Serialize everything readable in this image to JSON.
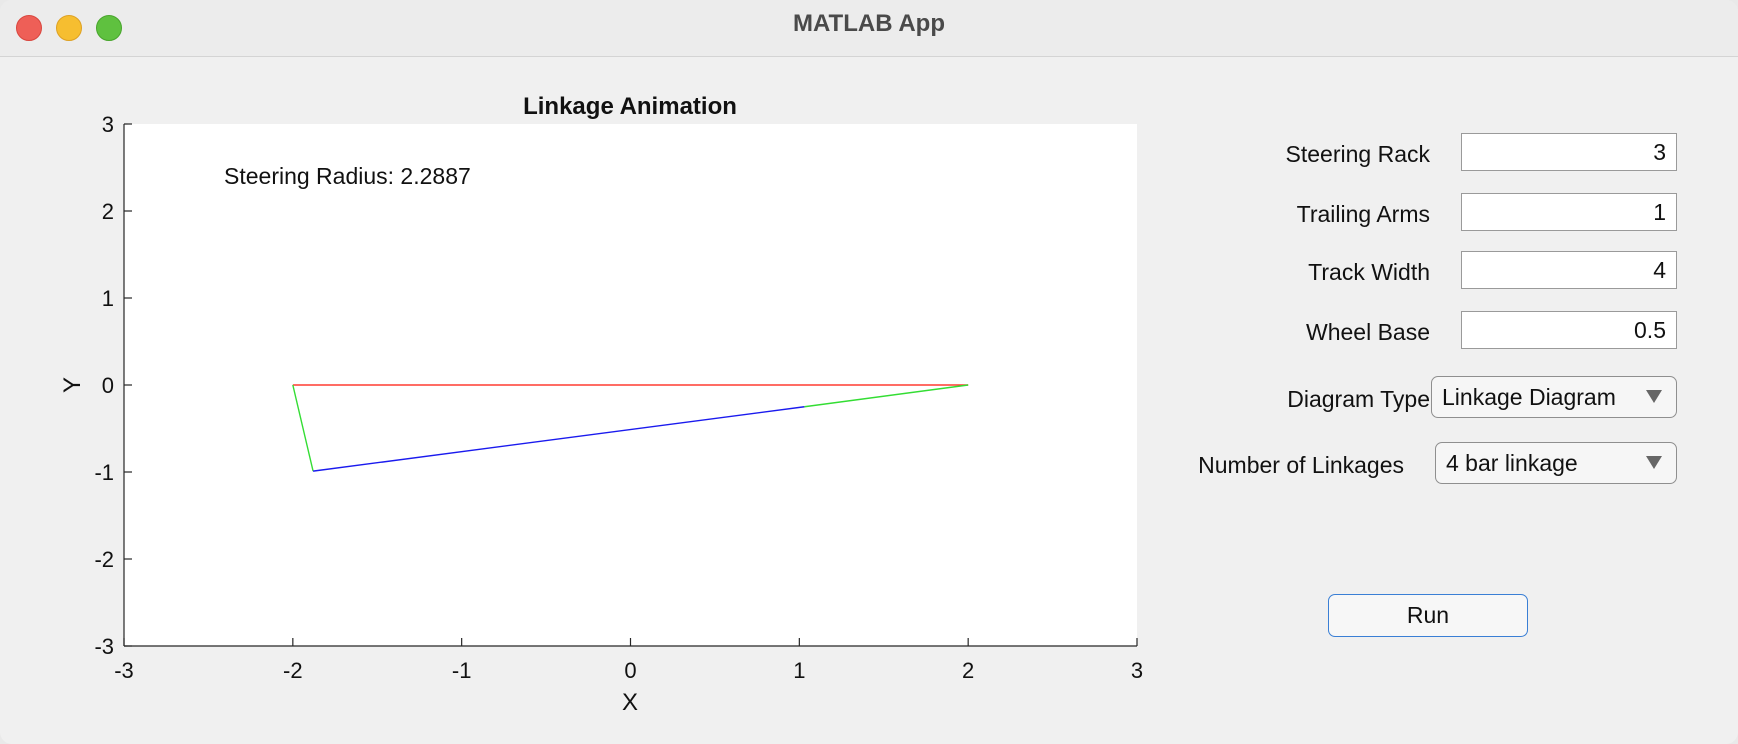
{
  "window": {
    "title": "MATLAB App"
  },
  "axes": {
    "title": "Linkage Animation",
    "xlabel": "X",
    "ylabel": "Y",
    "annotation": "Steering Radius: 2.2887",
    "x_ticks": [
      "-3",
      "-2",
      "-1",
      "0",
      "1",
      "2",
      "3"
    ],
    "y_ticks": [
      "3",
      "2",
      "1",
      "0",
      "-1",
      "-2",
      "-3"
    ]
  },
  "chart_data": {
    "type": "line",
    "title": "Linkage Animation",
    "xlabel": "X",
    "ylabel": "Y",
    "xlim": [
      -3,
      3
    ],
    "ylim": [
      -3,
      3
    ],
    "annotation": "Steering Radius: 2.2887",
    "series": [
      {
        "name": "red",
        "color": "#ff3b30",
        "x": [
          -2,
          2
        ],
        "y": [
          0,
          0
        ]
      },
      {
        "name": "green-left",
        "color": "#33dd33",
        "x": [
          -2,
          -1.88
        ],
        "y": [
          0,
          -0.99
        ]
      },
      {
        "name": "blue",
        "color": "#1a1aee",
        "x": [
          -1.88,
          1.03
        ],
        "y": [
          -0.99,
          -0.25
        ]
      },
      {
        "name": "green-right",
        "color": "#33dd33",
        "x": [
          1.03,
          2
        ],
        "y": [
          -0.25,
          0
        ]
      }
    ]
  },
  "controls": {
    "steering_rack": {
      "label": "Steering Rack",
      "value": "3"
    },
    "trailing_arms": {
      "label": "Trailing Arms",
      "value": "1"
    },
    "track_width": {
      "label": "Track Width",
      "value": "4"
    },
    "wheel_base": {
      "label": "Wheel Base",
      "value": "0.5"
    },
    "diagram_type": {
      "label": "Diagram Type",
      "value": "Linkage Diagram"
    },
    "num_linkages": {
      "label": "Number of Linkages",
      "value": "4 bar linkage"
    },
    "run_label": "Run"
  },
  "colors": {
    "accent": "#3a7fd5",
    "close": "#ee5f57",
    "minimize": "#f6be30",
    "maximize": "#5fc13f"
  }
}
